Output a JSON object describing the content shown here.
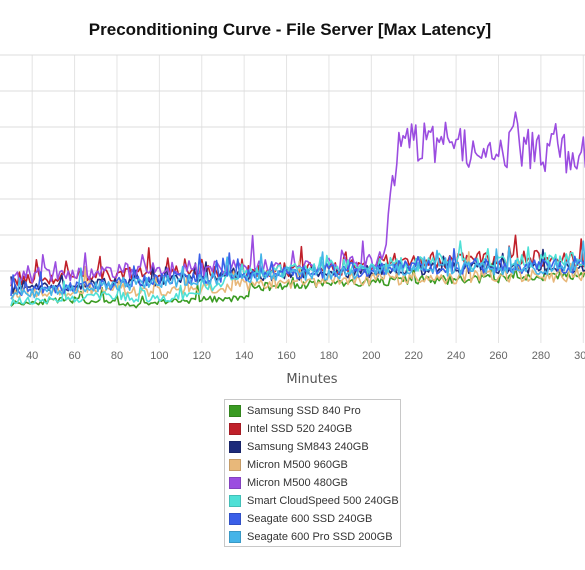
{
  "chart_data": {
    "type": "line",
    "title": "Preconditioning Curve - File Server [Max Latency]",
    "xlabel": "Minutes",
    "ylabel": "",
    "x_ticks": [
      40,
      60,
      80,
      100,
      120,
      140,
      160,
      180,
      200,
      220,
      240,
      260,
      280,
      300
    ],
    "xlim": [
      30,
      306
    ],
    "ylim": [
      0,
      8
    ],
    "grid": true,
    "legend_position": "bottom",
    "series": [
      {
        "name": "Samsung SSD 840 Pro",
        "color": "#3a9b22",
        "x": [
          30,
          60,
          90,
          100,
          120,
          140,
          145,
          160,
          180,
          200,
          220,
          240,
          260,
          280,
          300,
          306
        ],
        "y": [
          1.1,
          1.2,
          1.05,
          1.15,
          1.2,
          1.25,
          1.55,
          1.6,
          1.65,
          1.7,
          1.75,
          1.75,
          1.8,
          1.85,
          1.9,
          1.95
        ],
        "amp": 0.14
      },
      {
        "name": "Intel SSD 520 240GB",
        "color": "#c0202a",
        "x": [
          30,
          60,
          100,
          140,
          180,
          200,
          210,
          240,
          270,
          306
        ],
        "y": [
          1.75,
          1.85,
          1.95,
          2.0,
          2.05,
          2.1,
          2.3,
          2.3,
          2.35,
          2.35
        ],
        "amp": 0.2
      },
      {
        "name": "Samsung SM843 240GB",
        "color": "#1c2a7a",
        "x": [
          30,
          60,
          100,
          140,
          180,
          220,
          260,
          306
        ],
        "y": [
          1.5,
          1.6,
          1.75,
          1.85,
          1.95,
          2.05,
          2.1,
          2.1
        ],
        "amp": 0.18
      },
      {
        "name": "Micron M500 960GB",
        "color": "#e8b87a",
        "x": [
          30,
          60,
          80,
          90,
          120,
          140,
          180,
          220,
          260,
          306
        ],
        "y": [
          1.35,
          1.45,
          1.55,
          1.4,
          1.5,
          1.6,
          1.75,
          1.8,
          1.85,
          1.9
        ],
        "amp": 0.2
      },
      {
        "name": "Micron M500 480GB",
        "color": "#9b4de0",
        "x": [
          30,
          60,
          100,
          140,
          180,
          205,
          208,
          212,
          220,
          235,
          250,
          270,
          290,
          306
        ],
        "y": [
          1.85,
          1.95,
          2.05,
          2.1,
          2.15,
          2.3,
          3.4,
          5.3,
          5.6,
          5.55,
          5.4,
          5.5,
          5.25,
          5.2
        ],
        "amp": 0.22
      },
      {
        "name": "Smart CloudSpeed 500 240GB",
        "color": "#4fe0d6",
        "x": [
          30,
          60,
          80,
          90,
          110,
          140,
          180,
          220,
          260,
          306
        ],
        "y": [
          1.15,
          1.25,
          1.35,
          1.2,
          1.3,
          1.9,
          2.1,
          2.2,
          2.25,
          2.3
        ],
        "amp": 0.2
      },
      {
        "name": "Seagate 600 SSD 240GB",
        "color": "#3a5fe8",
        "x": [
          30,
          60,
          100,
          140,
          180,
          220,
          260,
          306
        ],
        "y": [
          1.45,
          1.55,
          1.75,
          1.9,
          2.0,
          2.1,
          2.15,
          2.15
        ],
        "amp": 0.2
      },
      {
        "name": "Seagate 600 Pro SSD 200GB",
        "color": "#45b4e8",
        "x": [
          30,
          60,
          100,
          140,
          180,
          220,
          260,
          306
        ],
        "y": [
          1.35,
          1.5,
          1.7,
          1.85,
          1.95,
          2.05,
          2.1,
          2.1
        ],
        "amp": 0.2
      }
    ]
  }
}
